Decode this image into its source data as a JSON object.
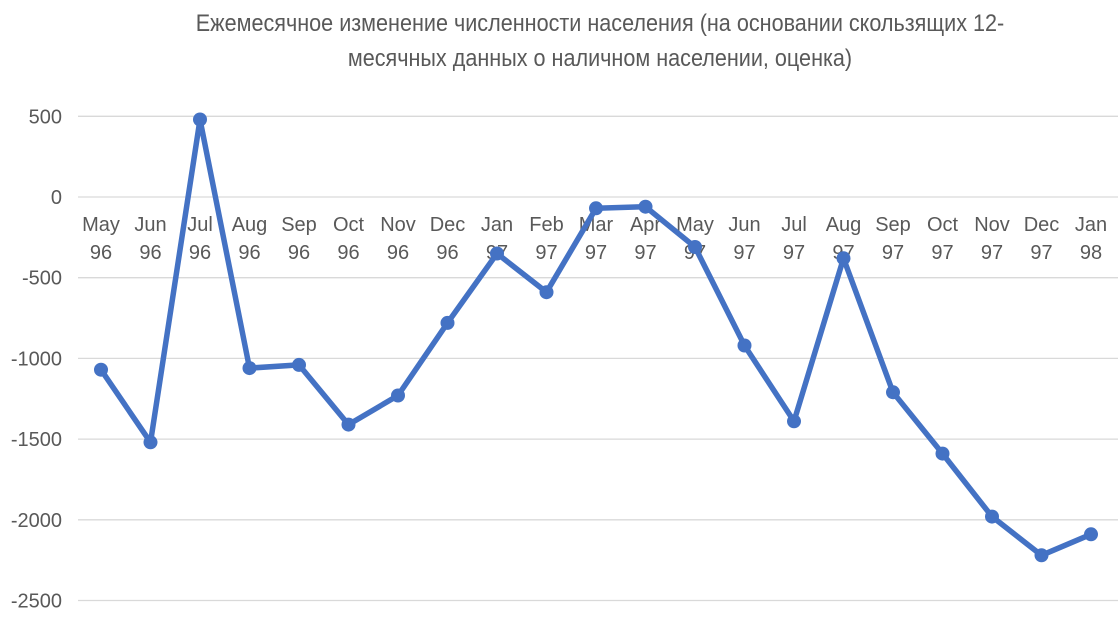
{
  "title": {
    "line1": "Ежемесячное изменение численности населения (на основании скользящих 12-",
    "line2": "месячных данных о наличном населении, оценка)"
  },
  "colors": {
    "line": "#4472C4",
    "marker": "#4472C4",
    "gridline": "#D9D9D9",
    "axis_text": "#595959",
    "title_text": "#595959",
    "background": "#FFFFFF"
  },
  "chart_data": {
    "type": "line",
    "title": "Ежемесячное изменение численности населения (на основании скользящих 12-месячных данных о наличном населении, оценка)",
    "categories": [
      "May 96",
      "Jun 96",
      "Jul 96",
      "Aug 96",
      "Sep 96",
      "Oct 96",
      "Nov 96",
      "Dec 96",
      "Jan 97",
      "Feb 97",
      "Mar 97",
      "Apr 97",
      "May 97",
      "Jun 97",
      "Jul 97",
      "Aug 97",
      "Sep 97",
      "Oct 97",
      "Nov 97",
      "Dec 97",
      "Jan 98"
    ],
    "values": [
      -1070,
      -1520,
      480,
      -1060,
      -1040,
      -1410,
      -1230,
      -780,
      -350,
      -590,
      -70,
      -60,
      -310,
      -920,
      -1390,
      -380,
      -1210,
      -1590,
      -1980,
      -2220,
      -2090
    ],
    "series": [
      {
        "name": "Изменение численности населения",
        "values": [
          -1070,
          -1520,
          480,
          -1060,
          -1040,
          -1410,
          -1230,
          -780,
          -350,
          -590,
          -70,
          -60,
          -310,
          -920,
          -1390,
          -380,
          -1210,
          -1590,
          -1980,
          -2220,
          -2090
        ]
      }
    ],
    "xlabel": "",
    "ylabel": "",
    "ylim": [
      -2500,
      500
    ],
    "yticks": [
      500,
      0,
      -500,
      -1000,
      -1500,
      -2000,
      -2500
    ],
    "grid": true,
    "legend": false,
    "marker": "circle",
    "x_label_two_lines": true
  }
}
